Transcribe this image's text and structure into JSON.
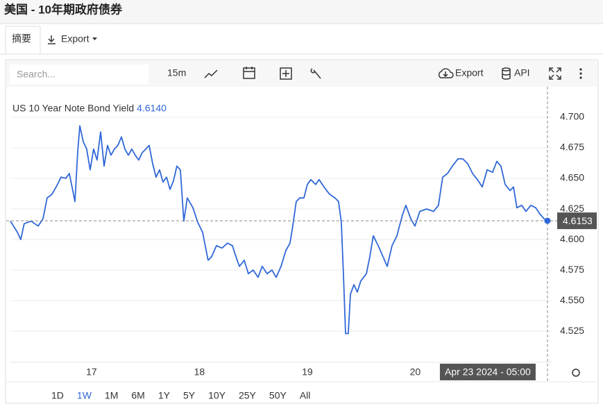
{
  "header": {
    "title": "美国 - 10年期政府债券"
  },
  "tabs": [
    "摘要",
    "Export"
  ],
  "toolbar": {
    "search_placeholder": "Search...",
    "interval": "15m",
    "export": "Export",
    "api": "API"
  },
  "ranges": {
    "items": [
      "1D",
      "1W",
      "1M",
      "6M",
      "1Y",
      "5Y",
      "10Y",
      "25Y",
      "50Y",
      "All"
    ],
    "active": "1W"
  },
  "chart_data": {
    "type": "line",
    "legend_name": "US 10 Year Note Bond Yield",
    "legend_value": "4.6140",
    "current_value": 4.6153,
    "crosshair_label": "Apr 23 2024 - 05:00",
    "series": [
      {
        "color": "#2f67d8",
        "x": [
          16.248,
          16.312,
          16.344,
          16.376,
          16.441,
          16.505,
          16.55,
          16.588,
          16.633,
          16.678,
          16.717,
          16.762,
          16.794,
          16.826,
          16.846,
          16.871,
          16.891,
          16.923,
          16.955,
          16.987,
          17.019,
          17.051,
          17.084,
          17.116,
          17.148,
          17.18,
          17.212,
          17.244,
          17.277,
          17.309,
          17.341,
          17.373,
          17.405,
          17.437,
          17.469,
          17.502,
          17.534,
          17.566,
          17.598,
          17.63,
          17.662,
          17.695,
          17.727,
          17.759,
          17.791,
          17.823,
          17.855,
          17.887,
          17.939,
          17.984,
          18.029,
          18.08,
          18.113,
          18.158,
          18.209,
          18.26,
          18.305,
          18.338,
          18.37,
          18.415,
          18.453,
          18.498,
          18.543,
          18.582,
          18.627,
          18.672,
          18.711,
          18.756,
          18.801,
          18.839,
          18.865,
          18.897,
          18.929,
          18.968,
          19.0,
          19.032,
          19.077,
          19.109,
          19.154,
          19.206,
          19.257,
          19.289,
          19.315,
          19.334,
          19.354,
          19.379,
          19.399,
          19.431,
          19.463,
          19.495,
          19.547,
          19.579,
          19.611,
          19.656,
          19.701,
          19.74,
          19.785,
          19.83,
          19.881,
          19.913,
          19.958,
          19.997,
          20.042,
          20.106,
          20.17,
          20.215,
          20.254,
          20.299,
          20.344,
          20.395,
          20.441,
          20.486,
          20.531,
          20.576,
          20.621,
          20.666,
          20.717,
          20.756,
          20.794,
          20.833,
          20.878,
          20.91,
          20.942,
          20.987,
          21.026,
          21.071,
          21.116,
          21.154,
          21.193,
          21.225
        ],
        "values": [
          4.615,
          4.606,
          4.6,
          4.613,
          4.615,
          4.611,
          4.617,
          4.634,
          4.637,
          4.644,
          4.651,
          4.65,
          4.654,
          4.64,
          4.631,
          4.671,
          4.693,
          4.68,
          4.674,
          4.657,
          4.674,
          4.665,
          4.688,
          4.66,
          4.677,
          4.669,
          4.674,
          4.677,
          4.684,
          4.674,
          4.669,
          4.674,
          4.669,
          4.665,
          4.671,
          4.674,
          4.677,
          4.662,
          4.651,
          4.657,
          4.647,
          4.651,
          4.641,
          4.648,
          4.66,
          4.657,
          4.615,
          4.634,
          4.626,
          4.614,
          4.606,
          4.583,
          4.586,
          4.595,
          4.593,
          4.597,
          4.595,
          4.586,
          4.578,
          4.583,
          4.572,
          4.575,
          4.569,
          4.578,
          4.572,
          4.575,
          4.569,
          4.578,
          4.591,
          4.597,
          4.611,
          4.631,
          4.634,
          4.634,
          4.645,
          4.649,
          4.645,
          4.649,
          4.643,
          4.637,
          4.634,
          4.631,
          4.614,
          4.572,
          4.523,
          4.523,
          4.555,
          4.563,
          4.557,
          4.566,
          4.572,
          4.586,
          4.603,
          4.595,
          4.586,
          4.578,
          4.595,
          4.603,
          4.62,
          4.628,
          4.617,
          4.611,
          4.623,
          4.625,
          4.623,
          4.628,
          4.651,
          4.654,
          4.66,
          4.666,
          4.666,
          4.662,
          4.654,
          4.649,
          4.643,
          4.657,
          4.655,
          4.664,
          4.66,
          4.645,
          4.64,
          4.643,
          4.626,
          4.628,
          4.623,
          4.628,
          4.626,
          4.621,
          4.617,
          4.6153
        ]
      }
    ],
    "xlim": [
      16.248,
      21.264
    ],
    "xticks": [
      17,
      18,
      19,
      20
    ],
    "ylim": [
      4.4995,
      4.725
    ],
    "yticks": [
      {
        "value": 4.525,
        "label": "4.525"
      },
      {
        "value": 4.55,
        "label": "4.550"
      },
      {
        "value": 4.575,
        "label": "4.575"
      },
      {
        "value": 4.6,
        "label": "4.600"
      },
      {
        "value": 4.625,
        "label": "4.625"
      },
      {
        "value": 4.65,
        "label": "4.650"
      },
      {
        "value": 4.675,
        "label": "4.675"
      },
      {
        "value": 4.7,
        "label": "4.700"
      }
    ],
    "grid": true
  }
}
